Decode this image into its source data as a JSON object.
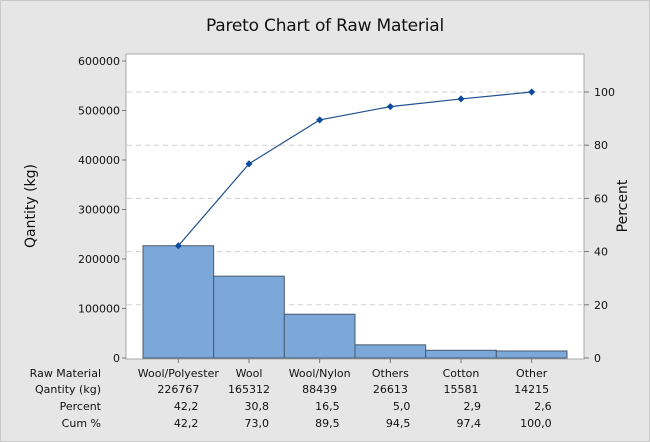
{
  "chart_data": {
    "type": "pareto",
    "title": "Pareto Chart of Raw Material",
    "xlabel": "Raw Material",
    "ylabel": "Qantity (kg)",
    "y2label": "Percent",
    "ylim": [
      0,
      600000
    ],
    "y2lim": [
      0,
      100
    ],
    "yticks": [
      0,
      100000,
      200000,
      300000,
      400000,
      500000,
      600000
    ],
    "y2ticks": [
      0,
      20,
      40,
      60,
      80,
      100
    ],
    "grid": "dashed horizontal at percent ticks",
    "categories": [
      "Wool/Polyester",
      "Wool",
      "Wool/Nylon",
      "Others",
      "Cotton",
      "Other"
    ],
    "series": [
      {
        "name": "Qantity (kg)",
        "type": "bar",
        "values": [
          226767,
          165312,
          88439,
          26613,
          15581,
          14215
        ]
      },
      {
        "name": "Cum %",
        "type": "line",
        "axis": "y2",
        "values": [
          42.2,
          73.0,
          89.5,
          94.5,
          97.4,
          100.0
        ]
      }
    ],
    "table": {
      "row_labels": [
        "Raw Material",
        "Qantity (kg)",
        "Percent",
        "Cum %"
      ],
      "rows": {
        "raw_material": [
          "Wool/Polyester",
          "Wool",
          "Wool/Nylon",
          "Others",
          "Cotton",
          "Other"
        ],
        "quantity": [
          "226767",
          "165312",
          "88439",
          "26613",
          "15581",
          "14215"
        ],
        "percent": [
          "42,2",
          "30,8",
          "16,5",
          "5,0",
          "2,9",
          "2,6"
        ],
        "cum_percent": [
          "42,2",
          "73,0",
          "89,5",
          "94,5",
          "97,4",
          "100,0"
        ]
      }
    },
    "colors": {
      "bar_fill": "#7ba7d9",
      "bar_stroke": "#4a5a6e",
      "line": "#1f4f8f",
      "marker": "#0b4a9a",
      "grid": "#cfcfcf",
      "background": "#e6e6e6",
      "plot_bg": "#ffffff"
    }
  },
  "header": {
    "title": "Pareto Chart of Raw Material"
  },
  "axes": {
    "left_label": "Qantity (kg)",
    "right_label": "Percent",
    "left_ticks": [
      "0",
      "100000",
      "200000",
      "300000",
      "400000",
      "500000",
      "600000"
    ],
    "right_ticks": [
      "0",
      "20",
      "40",
      "60",
      "80",
      "100"
    ]
  },
  "table": {
    "labels": {
      "raw_material": "Raw Material",
      "quantity": "Qantity (kg)",
      "percent": "Percent",
      "cum": "Cum %"
    },
    "cols": [
      {
        "name": "Wool/Polyester",
        "qty": "226767",
        "pct": "42,2",
        "cum": "42,2"
      },
      {
        "name": "Wool",
        "qty": "165312",
        "pct": "30,8",
        "cum": "73,0"
      },
      {
        "name": "Wool/Nylon",
        "qty": "88439",
        "pct": "16,5",
        "cum": "89,5"
      },
      {
        "name": "Others",
        "qty": "26613",
        "pct": "5,0",
        "cum": "94,5"
      },
      {
        "name": "Cotton",
        "qty": "15581",
        "pct": "2,9",
        "cum": "97,4"
      },
      {
        "name": "Other",
        "qty": "14215",
        "pct": "2,6",
        "cum": "100,0"
      }
    ]
  }
}
